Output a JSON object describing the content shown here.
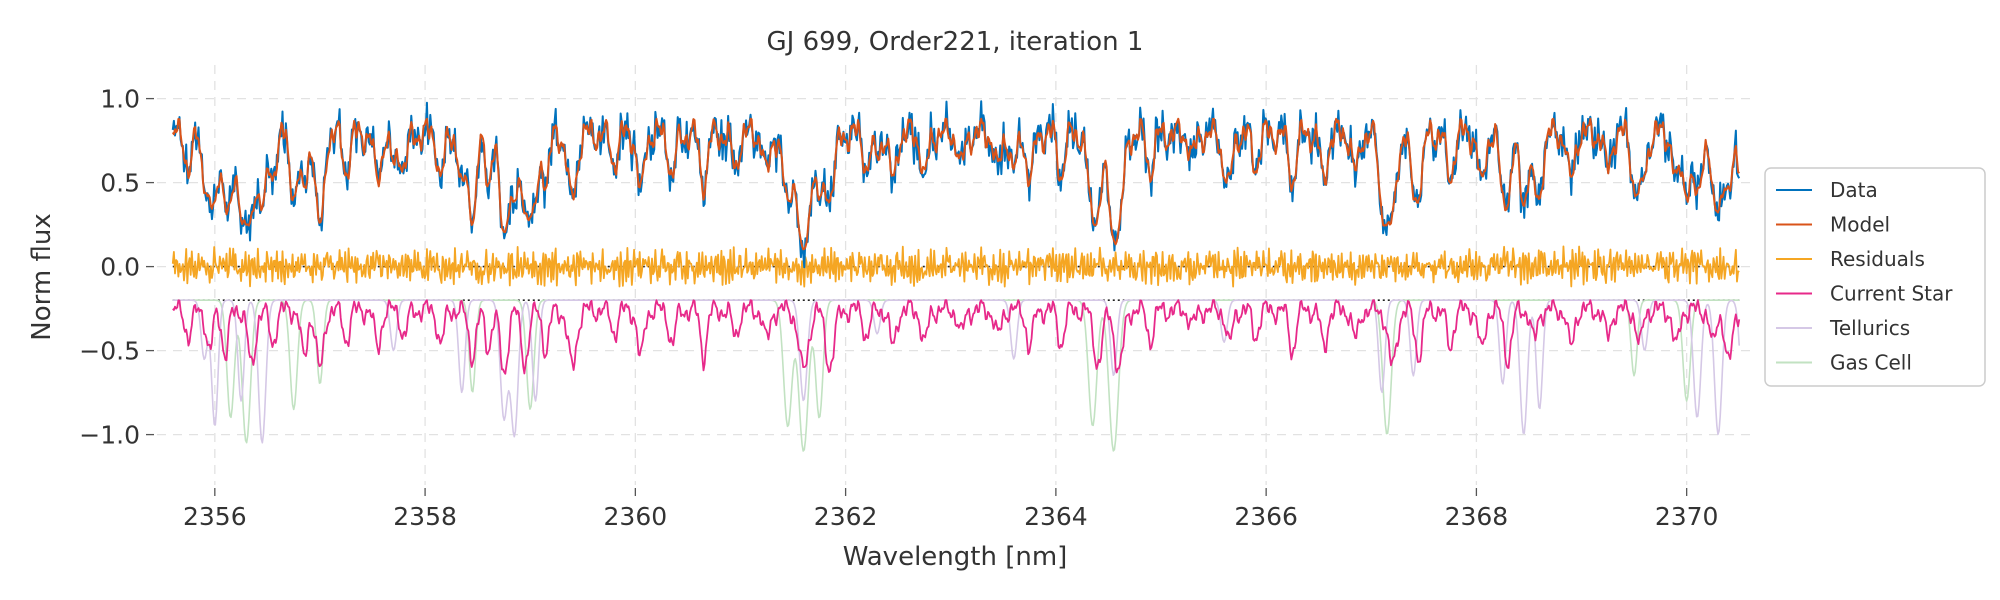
{
  "chart_data": {
    "type": "line",
    "title": "GJ 699, Order221, iteration 1",
    "xlabel": "Wavelength [nm]",
    "ylabel": "Norm flux",
    "xlim": [
      2355.45,
      2370.65
    ],
    "ylim": [
      -1.3,
      1.2
    ],
    "x_range": [
      2355.6,
      2370.5
    ],
    "x_ticks": [
      2356,
      2358,
      2360,
      2362,
      2364,
      2366,
      2368,
      2370
    ],
    "y_ticks": [
      -1.0,
      -0.5,
      0.0,
      0.5,
      1.0
    ],
    "x_tick_labels": [
      "2356",
      "2358",
      "2360",
      "2362",
      "2364",
      "2366",
      "2368",
      "2370"
    ],
    "y_tick_labels": [
      "−1.0",
      "−0.5",
      "0.0",
      "0.5",
      "1.0"
    ],
    "grid": true,
    "legend_position": "right",
    "reference_lines": [
      {
        "y": 0.0,
        "style": "dotted",
        "color": "#222222"
      },
      {
        "y": -0.2,
        "style": "dotted",
        "color": "#222222"
      }
    ],
    "series": [
      {
        "name": "Data",
        "color": "#0072bd",
        "width": 2.0,
        "opacity": 1.0
      },
      {
        "name": "Model",
        "color": "#d95319",
        "width": 2.0,
        "opacity": 1.0
      },
      {
        "name": "Residuals",
        "color": "#f5a623",
        "width": 1.8,
        "opacity": 1.0
      },
      {
        "name": "Current Star",
        "color": "#e7298a",
        "width": 1.8,
        "opacity": 1.0
      },
      {
        "name": "Tellurics",
        "color": "#d5c8e6",
        "width": 1.6,
        "opacity": 1.0
      },
      {
        "name": "Gas Cell",
        "color": "#c2e2c2",
        "width": 1.6,
        "opacity": 1.0
      }
    ],
    "continuum_level": 0.88,
    "star_lines": [
      {
        "center": 2355.75,
        "depth": 0.35,
        "width": 0.03
      },
      {
        "center": 2355.95,
        "depth": 0.55,
        "width": 0.03
      },
      {
        "center": 2356.1,
        "depth": 0.6,
        "width": 0.03
      },
      {
        "center": 2356.35,
        "depth": 0.75,
        "width": 0.035
      },
      {
        "center": 2356.55,
        "depth": 0.45,
        "width": 0.03
      },
      {
        "center": 2356.85,
        "depth": 0.65,
        "width": 0.03
      },
      {
        "center": 2357.0,
        "depth": 0.8,
        "width": 0.035
      },
      {
        "center": 2357.25,
        "depth": 0.4,
        "width": 0.03
      },
      {
        "center": 2357.55,
        "depth": 0.5,
        "width": 0.03
      },
      {
        "center": 2357.8,
        "depth": 0.35,
        "width": 0.03
      },
      {
        "center": 2358.15,
        "depth": 0.45,
        "width": 0.03
      },
      {
        "center": 2358.45,
        "depth": 0.6,
        "width": 0.035
      },
      {
        "center": 2358.6,
        "depth": 0.5,
        "width": 0.03
      },
      {
        "center": 2358.75,
        "depth": 0.85,
        "width": 0.035
      },
      {
        "center": 2358.95,
        "depth": 0.7,
        "width": 0.035
      },
      {
        "center": 2359.15,
        "depth": 0.55,
        "width": 0.03
      },
      {
        "center": 2359.4,
        "depth": 0.75,
        "width": 0.04
      },
      {
        "center": 2359.8,
        "depth": 0.3,
        "width": 0.03
      },
      {
        "center": 2360.05,
        "depth": 0.65,
        "width": 0.03
      },
      {
        "center": 2360.35,
        "depth": 0.45,
        "width": 0.03
      },
      {
        "center": 2360.65,
        "depth": 0.6,
        "width": 0.03
      },
      {
        "center": 2360.95,
        "depth": 0.35,
        "width": 0.03
      },
      {
        "center": 2361.25,
        "depth": 0.4,
        "width": 0.03
      },
      {
        "center": 2361.6,
        "depth": 0.8,
        "width": 0.045
      },
      {
        "center": 2361.85,
        "depth": 0.75,
        "width": 0.04
      },
      {
        "center": 2362.2,
        "depth": 0.35,
        "width": 0.03
      },
      {
        "center": 2362.45,
        "depth": 0.5,
        "width": 0.03
      },
      {
        "center": 2362.75,
        "depth": 0.45,
        "width": 0.03
      },
      {
        "center": 2363.1,
        "depth": 0.3,
        "width": 0.03
      },
      {
        "center": 2363.45,
        "depth": 0.35,
        "width": 0.03
      },
      {
        "center": 2363.75,
        "depth": 0.5,
        "width": 0.03
      },
      {
        "center": 2364.05,
        "depth": 0.45,
        "width": 0.03
      },
      {
        "center": 2364.4,
        "depth": 0.7,
        "width": 0.04
      },
      {
        "center": 2364.6,
        "depth": 0.8,
        "width": 0.04
      },
      {
        "center": 2364.9,
        "depth": 0.4,
        "width": 0.03
      },
      {
        "center": 2365.3,
        "depth": 0.2,
        "width": 0.03
      },
      {
        "center": 2365.65,
        "depth": 0.45,
        "width": 0.03
      },
      {
        "center": 2365.9,
        "depth": 0.35,
        "width": 0.03
      },
      {
        "center": 2366.25,
        "depth": 0.55,
        "width": 0.03
      },
      {
        "center": 2366.55,
        "depth": 0.5,
        "width": 0.03
      },
      {
        "center": 2366.85,
        "depth": 0.4,
        "width": 0.03
      },
      {
        "center": 2367.2,
        "depth": 0.75,
        "width": 0.04
      },
      {
        "center": 2367.45,
        "depth": 0.6,
        "width": 0.035
      },
      {
        "center": 2367.75,
        "depth": 0.5,
        "width": 0.03
      },
      {
        "center": 2368.05,
        "depth": 0.55,
        "width": 0.03
      },
      {
        "center": 2368.3,
        "depth": 0.65,
        "width": 0.035
      },
      {
        "center": 2368.55,
        "depth": 0.4,
        "width": 0.03
      },
      {
        "center": 2368.9,
        "depth": 0.5,
        "width": 0.03
      },
      {
        "center": 2369.25,
        "depth": 0.35,
        "width": 0.03
      },
      {
        "center": 2369.55,
        "depth": 0.45,
        "width": 0.03
      },
      {
        "center": 2369.9,
        "depth": 0.5,
        "width": 0.03
      },
      {
        "center": 2370.25,
        "depth": 0.45,
        "width": 0.03
      },
      {
        "center": 2370.4,
        "depth": 0.7,
        "width": 0.035
      }
    ],
    "telluric_lines": [
      {
        "center": 2355.9,
        "depth": 0.35,
        "width": 0.03
      },
      {
        "center": 2356.0,
        "depth": 0.75,
        "width": 0.03
      },
      {
        "center": 2356.25,
        "depth": 0.6,
        "width": 0.03
      },
      {
        "center": 2356.45,
        "depth": 0.85,
        "width": 0.035
      },
      {
        "center": 2357.7,
        "depth": 0.3,
        "width": 0.03
      },
      {
        "center": 2358.35,
        "depth": 0.55,
        "width": 0.03
      },
      {
        "center": 2358.75,
        "depth": 0.7,
        "width": 0.035
      },
      {
        "center": 2358.85,
        "depth": 0.8,
        "width": 0.035
      },
      {
        "center": 2359.05,
        "depth": 0.6,
        "width": 0.03
      },
      {
        "center": 2361.6,
        "depth": 0.6,
        "width": 0.035
      },
      {
        "center": 2362.3,
        "depth": 0.2,
        "width": 0.03
      },
      {
        "center": 2363.6,
        "depth": 0.35,
        "width": 0.03
      },
      {
        "center": 2364.55,
        "depth": 0.45,
        "width": 0.03
      },
      {
        "center": 2365.6,
        "depth": 0.25,
        "width": 0.03
      },
      {
        "center": 2367.1,
        "depth": 0.55,
        "width": 0.03
      },
      {
        "center": 2367.4,
        "depth": 0.45,
        "width": 0.03
      },
      {
        "center": 2368.25,
        "depth": 0.5,
        "width": 0.03
      },
      {
        "center": 2368.45,
        "depth": 0.8,
        "width": 0.035
      },
      {
        "center": 2368.6,
        "depth": 0.65,
        "width": 0.03
      },
      {
        "center": 2369.6,
        "depth": 0.3,
        "width": 0.03
      },
      {
        "center": 2370.1,
        "depth": 0.7,
        "width": 0.035
      },
      {
        "center": 2370.3,
        "depth": 0.8,
        "width": 0.035
      },
      {
        "center": 2370.55,
        "depth": 0.75,
        "width": 0.035
      }
    ],
    "gascell_lines": [
      {
        "center": 2356.15,
        "depth": 0.7,
        "width": 0.035
      },
      {
        "center": 2356.3,
        "depth": 0.85,
        "width": 0.04
      },
      {
        "center": 2356.75,
        "depth": 0.65,
        "width": 0.035
      },
      {
        "center": 2357.0,
        "depth": 0.5,
        "width": 0.03
      },
      {
        "center": 2358.45,
        "depth": 0.55,
        "width": 0.03
      },
      {
        "center": 2359.0,
        "depth": 0.65,
        "width": 0.035
      },
      {
        "center": 2361.45,
        "depth": 0.75,
        "width": 0.04
      },
      {
        "center": 2361.6,
        "depth": 0.9,
        "width": 0.045
      },
      {
        "center": 2361.75,
        "depth": 0.7,
        "width": 0.035
      },
      {
        "center": 2364.35,
        "depth": 0.75,
        "width": 0.04
      },
      {
        "center": 2364.55,
        "depth": 0.9,
        "width": 0.045
      },
      {
        "center": 2367.15,
        "depth": 0.8,
        "width": 0.04
      },
      {
        "center": 2369.5,
        "depth": 0.45,
        "width": 0.03
      },
      {
        "center": 2370.0,
        "depth": 0.6,
        "width": 0.035
      }
    ]
  }
}
